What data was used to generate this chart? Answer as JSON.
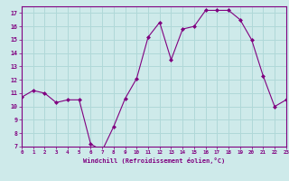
{
  "x": [
    0,
    1,
    2,
    3,
    4,
    5,
    6,
    7,
    8,
    9,
    10,
    11,
    12,
    13,
    14,
    15,
    16,
    17,
    18,
    19,
    20,
    21,
    22,
    23
  ],
  "y": [
    10.7,
    11.2,
    11.0,
    10.3,
    10.5,
    10.5,
    7.2,
    6.7,
    8.5,
    10.6,
    12.1,
    15.2,
    16.3,
    13.5,
    15.8,
    16.0,
    17.2,
    17.2,
    17.2,
    16.5,
    15.0,
    12.3,
    10.0,
    10.5
  ],
  "xlim": [
    0,
    23
  ],
  "ylim": [
    7,
    17.5
  ],
  "yticks": [
    7,
    8,
    9,
    10,
    11,
    12,
    13,
    14,
    15,
    16,
    17
  ],
  "xticks": [
    0,
    1,
    2,
    3,
    4,
    5,
    6,
    7,
    8,
    9,
    10,
    11,
    12,
    13,
    14,
    15,
    16,
    17,
    18,
    19,
    20,
    21,
    22,
    23
  ],
  "xlabel": "Windchill (Refroidissement éolien,°C)",
  "line_color": "#800080",
  "marker_color": "#800080",
  "bg_color": "#ceeaea",
  "grid_color": "#b0d8d8",
  "label_color": "#800080",
  "tick_color": "#800080",
  "font_family": "monospace"
}
